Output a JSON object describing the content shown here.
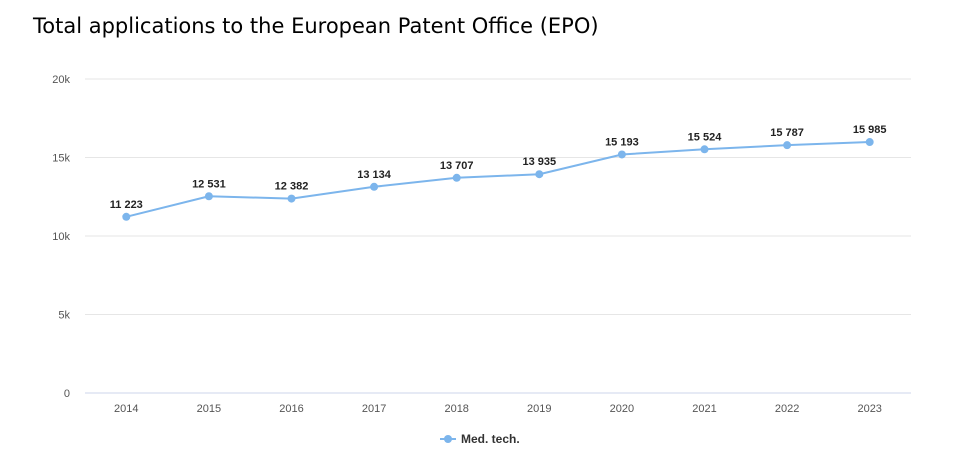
{
  "chart_data": {
    "type": "line",
    "title": "Total applications to the European Patent Office (EPO)",
    "categories": [
      "2014",
      "2015",
      "2016",
      "2017",
      "2018",
      "2019",
      "2020",
      "2021",
      "2022",
      "2023"
    ],
    "series": [
      {
        "name": "Med. tech.",
        "values": [
          11223,
          12531,
          12382,
          13134,
          13707,
          13935,
          15193,
          15524,
          15787,
          15985
        ],
        "labels": [
          "11 223",
          "12 531",
          "12 382",
          "13 134",
          "13 707",
          "13 935",
          "15 193",
          "15 524",
          "15 787",
          "15 985"
        ]
      }
    ],
    "ylim": [
      0,
      20000
    ],
    "yticks": [
      0,
      5000,
      10000,
      15000,
      20000
    ],
    "ytick_labels": [
      "0",
      "5k",
      "10k",
      "15k",
      "20k"
    ],
    "grid": true,
    "legend": "bottom-center",
    "colors": {
      "series": "#7cb5ec",
      "grid": "#e6e6e6",
      "axis": "#ccd6eb"
    }
  }
}
